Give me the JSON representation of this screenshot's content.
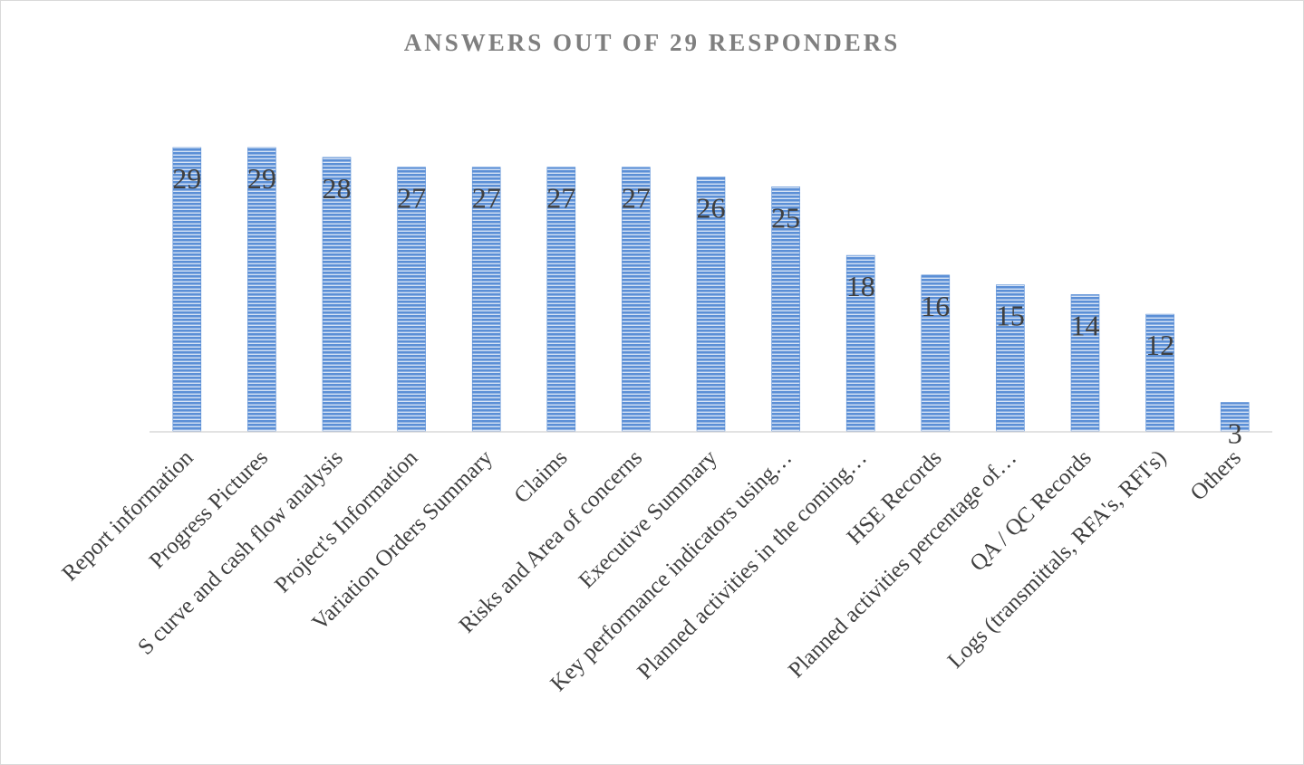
{
  "chart_data": {
    "type": "bar",
    "title": "ANSWERS  OUT OF 29 RESPONDERS",
    "xlabel": "",
    "ylabel": "",
    "ylim": [
      0,
      29
    ],
    "grid": false,
    "legend": "none",
    "bar_color": "#5b8fd6",
    "categories": [
      "Report information",
      "Progress Pictures",
      "S curve and cash flow analysis",
      "Project's Information",
      "Variation Orders Summary",
      "Claims",
      "Risks and Area of concerns",
      "Executive Summary",
      "Key performance indicators using…",
      "Planned activities in the coming…",
      "HSE Records",
      "Planned activities percentage of…",
      "QA / QC Records",
      "Logs (transmittals, RFA's, RFI's)",
      "Others"
    ],
    "values": [
      29,
      29,
      28,
      27,
      27,
      27,
      27,
      26,
      25,
      18,
      16,
      15,
      14,
      12,
      3
    ]
  }
}
